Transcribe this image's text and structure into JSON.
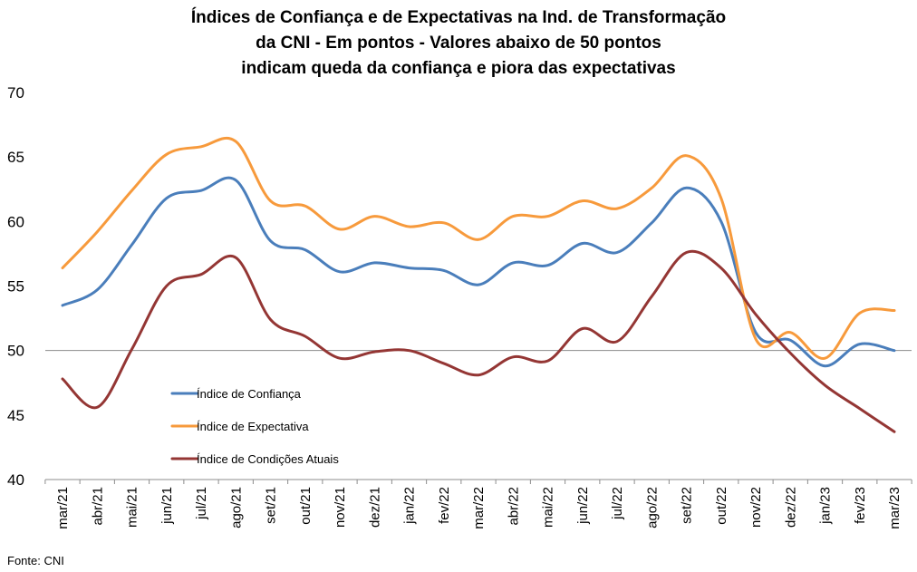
{
  "chart_data": {
    "type": "line",
    "title_lines": [
      "Índices de Confiança e de Expectativas na Ind. de Transformação",
      "da CNI - Em pontos - Valores abaixo de 50 pontos",
      "indicam queda da confiança e piora das expectativas"
    ],
    "categories": [
      "mar/21",
      "abr/21",
      "mai/21",
      "jun/21",
      "jul/21",
      "ago/21",
      "set/21",
      "out/21",
      "nov/21",
      "dez/21",
      "jan/22",
      "fev/22",
      "mar/22",
      "abr/22",
      "mai/22",
      "jun/22",
      "jul/22",
      "ago/22",
      "set/22",
      "out/22",
      "nov/22",
      "dez/22",
      "jan/23",
      "fev/23",
      "mar/23"
    ],
    "ylim": [
      40,
      70
    ],
    "yticks": [
      "40",
      "45",
      "50",
      "55",
      "60",
      "65",
      "70"
    ],
    "reference_line": 50,
    "legend_position": "left",
    "series": [
      {
        "name": "Índice de Confiança",
        "color": "#4a7ebb",
        "values": [
          53.5,
          54.7,
          58.2,
          61.8,
          62.4,
          63.2,
          58.5,
          57.8,
          56.1,
          56.8,
          56.4,
          56.2,
          55.1,
          56.8,
          56.6,
          58.3,
          57.6,
          59.9,
          62.6,
          60.0,
          51.4,
          50.8,
          48.8,
          50.5,
          50.0
        ]
      },
      {
        "name": "Índice de Expectativa",
        "color": "#f79a3c",
        "values": [
          56.4,
          59.2,
          62.4,
          65.2,
          65.8,
          66.2,
          61.6,
          61.2,
          59.4,
          60.4,
          59.6,
          59.9,
          58.6,
          60.4,
          60.4,
          61.6,
          61.0,
          62.6,
          65.1,
          61.8,
          50.9,
          51.4,
          49.4,
          52.9,
          53.1
        ]
      },
      {
        "name": "Índice de Condições Atuais",
        "color": "#943634",
        "values": [
          47.8,
          45.6,
          50.1,
          55.0,
          55.9,
          57.2,
          52.4,
          51.1,
          49.4,
          49.9,
          50.0,
          49.0,
          48.1,
          49.5,
          49.2,
          51.7,
          50.7,
          54.2,
          57.6,
          56.4,
          52.8,
          49.8,
          47.3,
          45.5,
          43.7
        ]
      }
    ]
  },
  "source": "Fonte: CNI"
}
